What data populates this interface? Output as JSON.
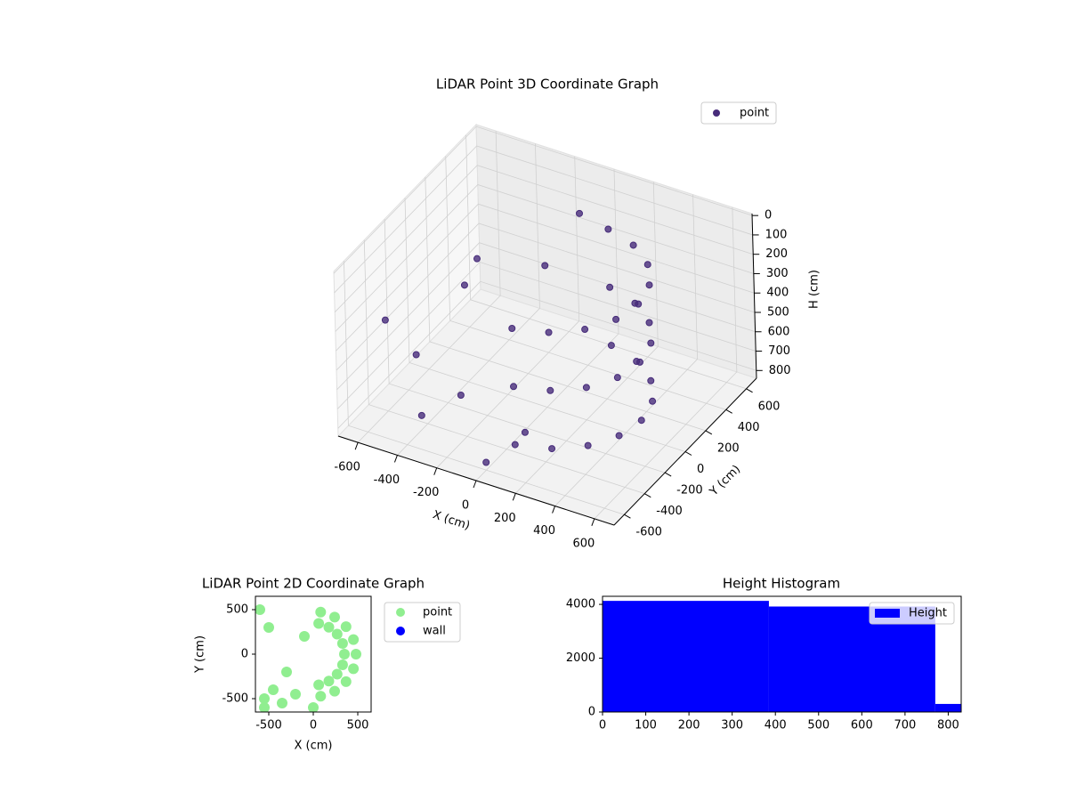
{
  "chart_data": [
    {
      "type": "scatter3d",
      "title": "LiDAR Point 3D Coordinate Graph",
      "xlabel": "X (cm)",
      "ylabel": "Y (cm)",
      "zlabel": "H (cm)",
      "xlim": [
        -700,
        700
      ],
      "ylim": [
        -700,
        700
      ],
      "zlim": [
        840,
        -10
      ],
      "xticks": [
        -600,
        -400,
        -200,
        0,
        200,
        400,
        600
      ],
      "yticks": [
        -600,
        -400,
        -200,
        0,
        200,
        400,
        600
      ],
      "zticks": [
        0,
        100,
        200,
        300,
        400,
        500,
        600,
        700,
        800
      ],
      "legend": "upper right",
      "series": [
        {
          "name": "point",
          "color": "#472c7a",
          "x": [
            83,
            240,
            368,
            451,
            480,
            451,
            368,
            240,
            83,
            83,
            240,
            368,
            451,
            480,
            451,
            368,
            240,
            83,
            83,
            240,
            368,
            451,
            480,
            451,
            368,
            240,
            83,
            -550,
            -450,
            -300,
            -200,
            -500,
            -100,
            -350,
            0,
            150,
            -50
          ],
          "y": [
            -473,
            -416,
            -309,
            -164,
            0,
            164,
            309,
            416,
            473,
            -473,
            -416,
            -309,
            -164,
            0,
            164,
            309,
            416,
            473,
            -473,
            -416,
            -309,
            -164,
            0,
            164,
            309,
            416,
            473,
            -500,
            -400,
            -200,
            -450,
            300,
            200,
            -550,
            -600,
            -500,
            450
          ],
          "z": [
            150,
            150,
            150,
            150,
            150,
            150,
            150,
            150,
            150,
            450,
            450,
            450,
            450,
            450,
            450,
            450,
            450,
            450,
            750,
            750,
            750,
            750,
            750,
            750,
            750,
            750,
            750,
            300,
            500,
            200,
            600,
            400,
            250,
            700,
            800,
            650,
            100
          ]
        }
      ]
    },
    {
      "type": "scatter",
      "title": "LiDAR Point 2D Coordinate Graph",
      "xlabel": "X (cm)",
      "ylabel": "Y (cm)",
      "xlim": [
        -650,
        650
      ],
      "ylim": [
        -650,
        650
      ],
      "xticks": [
        -500,
        0,
        500
      ],
      "yticks": [
        -500,
        0,
        500
      ],
      "legend": "outside right",
      "series": [
        {
          "name": "point",
          "color": "#90ee90",
          "x": [
            83,
            240,
            368,
            451,
            480,
            451,
            368,
            240,
            83,
            61,
            175,
            268,
            329,
            350,
            329,
            268,
            175,
            61,
            -550,
            -450,
            -300,
            -200,
            -500,
            -100,
            -350,
            0,
            -600,
            -550
          ],
          "y": [
            -473,
            -416,
            -309,
            -164,
            0,
            164,
            309,
            416,
            473,
            -345,
            -303,
            -225,
            -120,
            0,
            120,
            225,
            303,
            345,
            -500,
            -400,
            -200,
            -450,
            300,
            200,
            -550,
            -600,
            500,
            -600
          ]
        },
        {
          "name": "wall",
          "color": "#0000ff",
          "x": [],
          "y": []
        }
      ]
    },
    {
      "type": "histogram",
      "title": "Height Histogram",
      "bins": [
        0,
        385,
        770,
        830
      ],
      "counts": [
        4130,
        3920,
        300
      ],
      "xlim": [
        0,
        830
      ],
      "ylim": [
        0,
        4300
      ],
      "xticks": [
        0,
        100,
        200,
        300,
        400,
        500,
        600,
        700,
        800
      ],
      "yticks": [
        0,
        2000,
        4000
      ],
      "legend": "upper right",
      "series_name": "Height",
      "color": "#0000ff"
    }
  ]
}
